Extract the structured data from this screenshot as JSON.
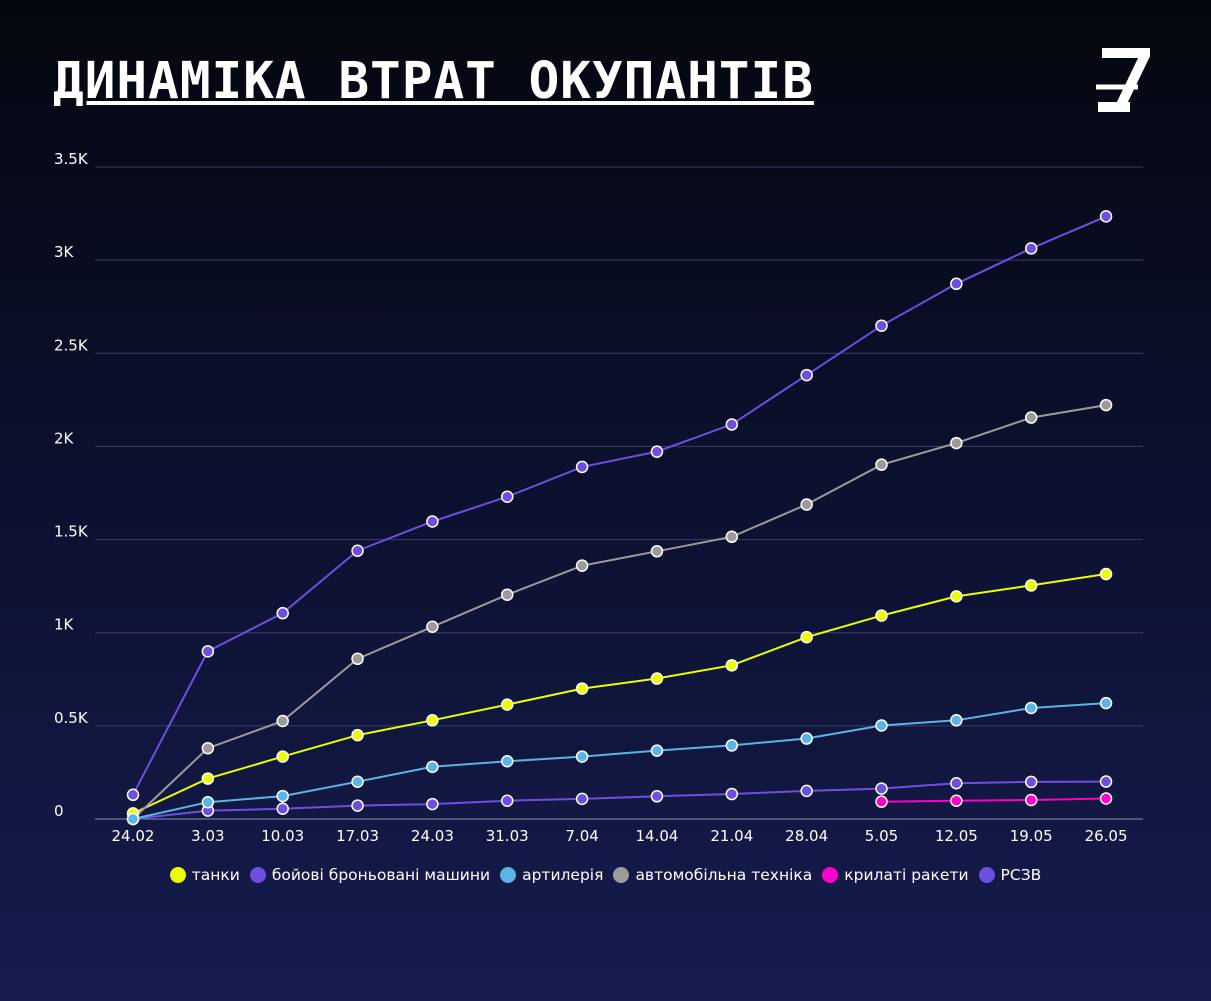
{
  "header": {
    "title": "ДИНАМІКА ВТРАТ ОКУПАНТІВ",
    "logo_icon": "z-logo-icon"
  },
  "chart_data": {
    "type": "line",
    "title": "ДИНАМІКА ВТРАТ ОКУПАНТІВ",
    "xlabel": "",
    "ylabel": "",
    "x": [
      "24.02",
      "3.03",
      "10.03",
      "17.03",
      "24.03",
      "31.03",
      "7.04",
      "14.04",
      "21.04",
      "28.04",
      "5.05",
      "12.05",
      "19.05",
      "26.05"
    ],
    "ylim": [
      0,
      3500
    ],
    "yticks": [
      0,
      500,
      1000,
      1500,
      2000,
      2500,
      3000,
      3500
    ],
    "ytick_labels": [
      "0",
      "0.5K",
      "1K",
      "1.5K",
      "2K",
      "2.5K",
      "3K",
      "3.5K"
    ],
    "grid": true,
    "legend_position": "bottom",
    "series": [
      {
        "name": "танки",
        "color": "#eaff00",
        "values": [
          30,
          217,
          335,
          450,
          530,
          614,
          700,
          754,
          825,
          976,
          1092,
          1195,
          1254,
          1315
        ]
      },
      {
        "name": "бойові броньовані машини",
        "color": "#6c4fe0",
        "values": [
          130,
          900,
          1105,
          1440,
          1597,
          1730,
          1890,
          1972,
          2118,
          2383,
          2648,
          2873,
          3063,
          3235
        ]
      },
      {
        "name": "артилерія",
        "color": "#5ab4e6",
        "values": [
          0,
          90,
          123,
          200,
          280,
          310,
          335,
          367,
          395,
          432,
          502,
          530,
          596,
          622
        ]
      },
      {
        "name": "автомобільна техніка",
        "color": "#9b9b9b",
        "values": [
          0,
          380,
          526,
          860,
          1032,
          1204,
          1360,
          1437,
          1515,
          1688,
          1902,
          2018,
          2155,
          2222
        ]
      },
      {
        "name": "крилаті ракети",
        "color": "#ff00cc",
        "values": [
          null,
          null,
          null,
          null,
          null,
          null,
          null,
          null,
          null,
          null,
          93,
          98,
          102,
          110
        ]
      },
      {
        "name": "РСЗВ",
        "color": "#6c4fe0",
        "values": [
          0,
          45,
          55,
          72,
          80,
          98,
          108,
          122,
          134,
          151,
          163,
          192,
          199,
          201
        ]
      }
    ]
  }
}
